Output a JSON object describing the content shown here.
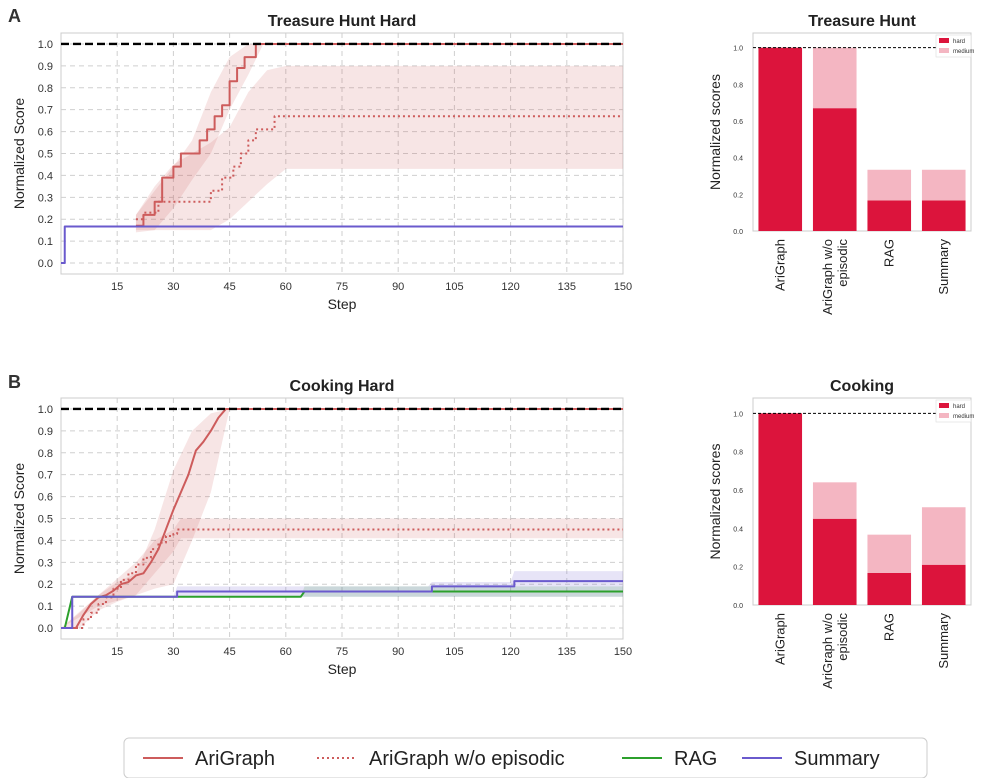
{
  "panel_labels": [
    "A",
    "B"
  ],
  "legend": {
    "items": [
      {
        "label": "AriGraph",
        "color": "#cd5c5c",
        "dash": ""
      },
      {
        "label": "AriGraph w/o episodic",
        "color": "#cd5c5c",
        "dash": "2,3"
      },
      {
        "label": "RAG",
        "color": "#2ca02c",
        "dash": ""
      },
      {
        "label": "Summary",
        "color": "#6a5acd",
        "dash": ""
      }
    ]
  },
  "chart_data": [
    {
      "id": "treasure-line",
      "type": "line",
      "title": "Treasure Hunt Hard",
      "xlabel": "Step",
      "ylabel": "Normalized Score",
      "xlim": [
        0,
        150
      ],
      "ylim": [
        -0.05,
        1.05
      ],
      "xticks": [
        15,
        30,
        45,
        60,
        75,
        90,
        105,
        120,
        135,
        150
      ],
      "yticks": [
        0.0,
        0.1,
        0.2,
        0.3,
        0.4,
        0.5,
        0.6,
        0.7,
        0.8,
        0.9,
        1.0
      ],
      "grid": true,
      "reference_line": 1.0,
      "series": [
        {
          "name": "AriGraph",
          "color": "#cd5c5c",
          "dash": "",
          "step": true,
          "x": [
            20,
            22,
            25,
            27,
            30,
            32,
            35,
            37,
            39,
            41,
            43,
            45,
            47,
            49,
            52,
            54,
            150
          ],
          "y": [
            0.17,
            0.22,
            0.28,
            0.39,
            0.44,
            0.5,
            0.5,
            0.56,
            0.61,
            0.67,
            0.72,
            0.83,
            0.89,
            0.94,
            1.0,
            1.0,
            1.0
          ],
          "band_x": [
            20,
            25,
            30,
            35,
            40,
            45,
            50,
            54,
            150
          ],
          "band_lo": [
            0.14,
            0.15,
            0.25,
            0.38,
            0.5,
            0.7,
            0.86,
            1.0,
            1.0
          ],
          "band_hi": [
            0.22,
            0.33,
            0.44,
            0.56,
            0.78,
            0.94,
            1.0,
            1.0,
            1.0
          ]
        },
        {
          "name": "AriGraph w/o episodic",
          "color": "#cd5c5c",
          "dash": "2,3",
          "step": true,
          "x": [
            20,
            22,
            26,
            36,
            40,
            43,
            46,
            48,
            50,
            52,
            55,
            57,
            150
          ],
          "y": [
            0.2,
            0.23,
            0.28,
            0.28,
            0.33,
            0.39,
            0.44,
            0.5,
            0.56,
            0.61,
            0.61,
            0.67,
            0.67
          ],
          "band_x": [
            20,
            25,
            30,
            35,
            40,
            45,
            50,
            55,
            60,
            150
          ],
          "band_lo": [
            0.15,
            0.15,
            0.15,
            0.15,
            0.15,
            0.2,
            0.28,
            0.36,
            0.43,
            0.43
          ],
          "band_hi": [
            0.22,
            0.35,
            0.45,
            0.5,
            0.55,
            0.62,
            0.78,
            0.88,
            0.9,
            0.9
          ]
        },
        {
          "name": "Summary",
          "color": "#6a5acd",
          "dash": "",
          "step": true,
          "x": [
            0,
            1,
            150
          ],
          "y": [
            0.0,
            0.167,
            0.167
          ]
        }
      ]
    },
    {
      "id": "treasure-bar",
      "type": "bar",
      "title": "Treasure Hunt",
      "ylabel": "Normalized scores",
      "ylim": [
        0,
        1.08
      ],
      "yticks": [
        0.0,
        0.2,
        0.4,
        0.6,
        0.8,
        1.0
      ],
      "categories": [
        "AriGraph",
        "AriGraph w/o\nepisodic",
        "RAG",
        "Summary"
      ],
      "stacked": true,
      "reference_line": 1.0,
      "legend_position": "top-right",
      "series": [
        {
          "name": "hard",
          "color": "#dc143c",
          "values": [
            1.0,
            0.67,
            0.167,
            0.167
          ]
        },
        {
          "name": "medium",
          "color": "#f4b6c2",
          "values": [
            0.0,
            0.33,
            0.167,
            0.167
          ]
        }
      ]
    },
    {
      "id": "cooking-line",
      "type": "line",
      "title": "Cooking Hard",
      "xlabel": "Step",
      "ylabel": "Normalized Score",
      "xlim": [
        0,
        150
      ],
      "ylim": [
        -0.05,
        1.05
      ],
      "xticks": [
        15,
        30,
        45,
        60,
        75,
        90,
        105,
        120,
        135,
        150
      ],
      "yticks": [
        0.0,
        0.1,
        0.2,
        0.3,
        0.4,
        0.5,
        0.6,
        0.7,
        0.8,
        0.9,
        1.0
      ],
      "grid": true,
      "reference_line": 1.0,
      "series": [
        {
          "name": "AriGraph",
          "color": "#cd5c5c",
          "dash": "",
          "step": false,
          "x": [
            0,
            2,
            4,
            6,
            8,
            10,
            12,
            14,
            16,
            18,
            20,
            22,
            24,
            26,
            28,
            30,
            32,
            34,
            36,
            38,
            40,
            42,
            44,
            46,
            150
          ],
          "y": [
            0.0,
            0.0,
            0.0,
            0.06,
            0.11,
            0.14,
            0.15,
            0.17,
            0.2,
            0.21,
            0.24,
            0.25,
            0.3,
            0.36,
            0.45,
            0.54,
            0.62,
            0.7,
            0.81,
            0.85,
            0.9,
            0.96,
            1.0,
            1.0,
            1.0
          ],
          "band_x": [
            0,
            5,
            10,
            15,
            20,
            25,
            30,
            35,
            40,
            45,
            150
          ],
          "band_lo": [
            0.0,
            0.0,
            0.08,
            0.12,
            0.15,
            0.18,
            0.2,
            0.4,
            0.62,
            1.0,
            1.0
          ],
          "band_hi": [
            0.0,
            0.07,
            0.15,
            0.21,
            0.25,
            0.45,
            0.72,
            0.9,
            0.98,
            1.0,
            1.0
          ]
        },
        {
          "name": "AriGraph w/o episodic",
          "color": "#cd5c5c",
          "dash": "2,3",
          "step": true,
          "x": [
            0,
            2,
            5,
            6,
            8,
            10,
            12,
            14,
            16,
            18,
            20,
            22,
            24,
            26,
            28,
            30,
            31,
            150
          ],
          "y": [
            0.0,
            0.0,
            0.0,
            0.04,
            0.07,
            0.11,
            0.14,
            0.18,
            0.22,
            0.25,
            0.29,
            0.32,
            0.36,
            0.39,
            0.42,
            0.43,
            0.45,
            0.45
          ],
          "band_x": [
            0,
            10,
            20,
            25,
            30,
            32,
            150
          ],
          "band_lo": [
            0.0,
            0.1,
            0.15,
            0.25,
            0.35,
            0.41,
            0.41
          ],
          "band_hi": [
            0.0,
            0.15,
            0.3,
            0.4,
            0.45,
            0.5,
            0.5
          ]
        },
        {
          "name": "RAG",
          "color": "#2ca02c",
          "dash": "",
          "step": false,
          "x": [
            0,
            1,
            3,
            4,
            30,
            31,
            64,
            65,
            98,
            99,
            150
          ],
          "y": [
            0.0,
            0.0,
            0.143,
            0.143,
            0.143,
            0.143,
            0.143,
            0.167,
            0.167,
            0.167,
            0.167
          ],
          "band_x": [
            0,
            3,
            30,
            64,
            65,
            98,
            99,
            150
          ],
          "band_lo": [
            0.0,
            0.143,
            0.143,
            0.143,
            0.143,
            0.143,
            0.143,
            0.143
          ],
          "band_hi": [
            0.0,
            0.143,
            0.143,
            0.143,
            0.19,
            0.19,
            0.19,
            0.19
          ]
        },
        {
          "name": "Summary",
          "color": "#6a5acd",
          "dash": "",
          "step": true,
          "x": [
            0,
            1,
            3,
            30,
            31,
            64,
            98,
            99,
            120,
            121,
            150
          ],
          "y": [
            0.0,
            0.0,
            0.143,
            0.143,
            0.167,
            0.167,
            0.167,
            0.19,
            0.19,
            0.214,
            0.214
          ],
          "band_x": [
            0,
            3,
            30,
            31,
            98,
            99,
            120,
            121,
            150
          ],
          "band_lo": [
            0.0,
            0.143,
            0.143,
            0.143,
            0.143,
            0.143,
            0.143,
            0.143,
            0.143
          ],
          "band_hi": [
            0.0,
            0.143,
            0.143,
            0.19,
            0.19,
            0.21,
            0.21,
            0.26,
            0.26
          ]
        }
      ]
    },
    {
      "id": "cooking-bar",
      "type": "bar",
      "title": "Cooking",
      "ylabel": "Normalized scores",
      "ylim": [
        0,
        1.08
      ],
      "yticks": [
        0.0,
        0.2,
        0.4,
        0.6,
        0.8,
        1.0
      ],
      "categories": [
        "AriGraph",
        "AriGraph w/o\nepisodic",
        "RAG",
        "Summary"
      ],
      "stacked": true,
      "reference_line": 1.0,
      "legend_position": "top-right",
      "series": [
        {
          "name": "hard",
          "color": "#dc143c",
          "values": [
            1.0,
            0.45,
            0.167,
            0.21
          ]
        },
        {
          "name": "medium",
          "color": "#f4b6c2",
          "values": [
            0.0,
            0.19,
            0.2,
            0.3
          ]
        }
      ]
    }
  ]
}
